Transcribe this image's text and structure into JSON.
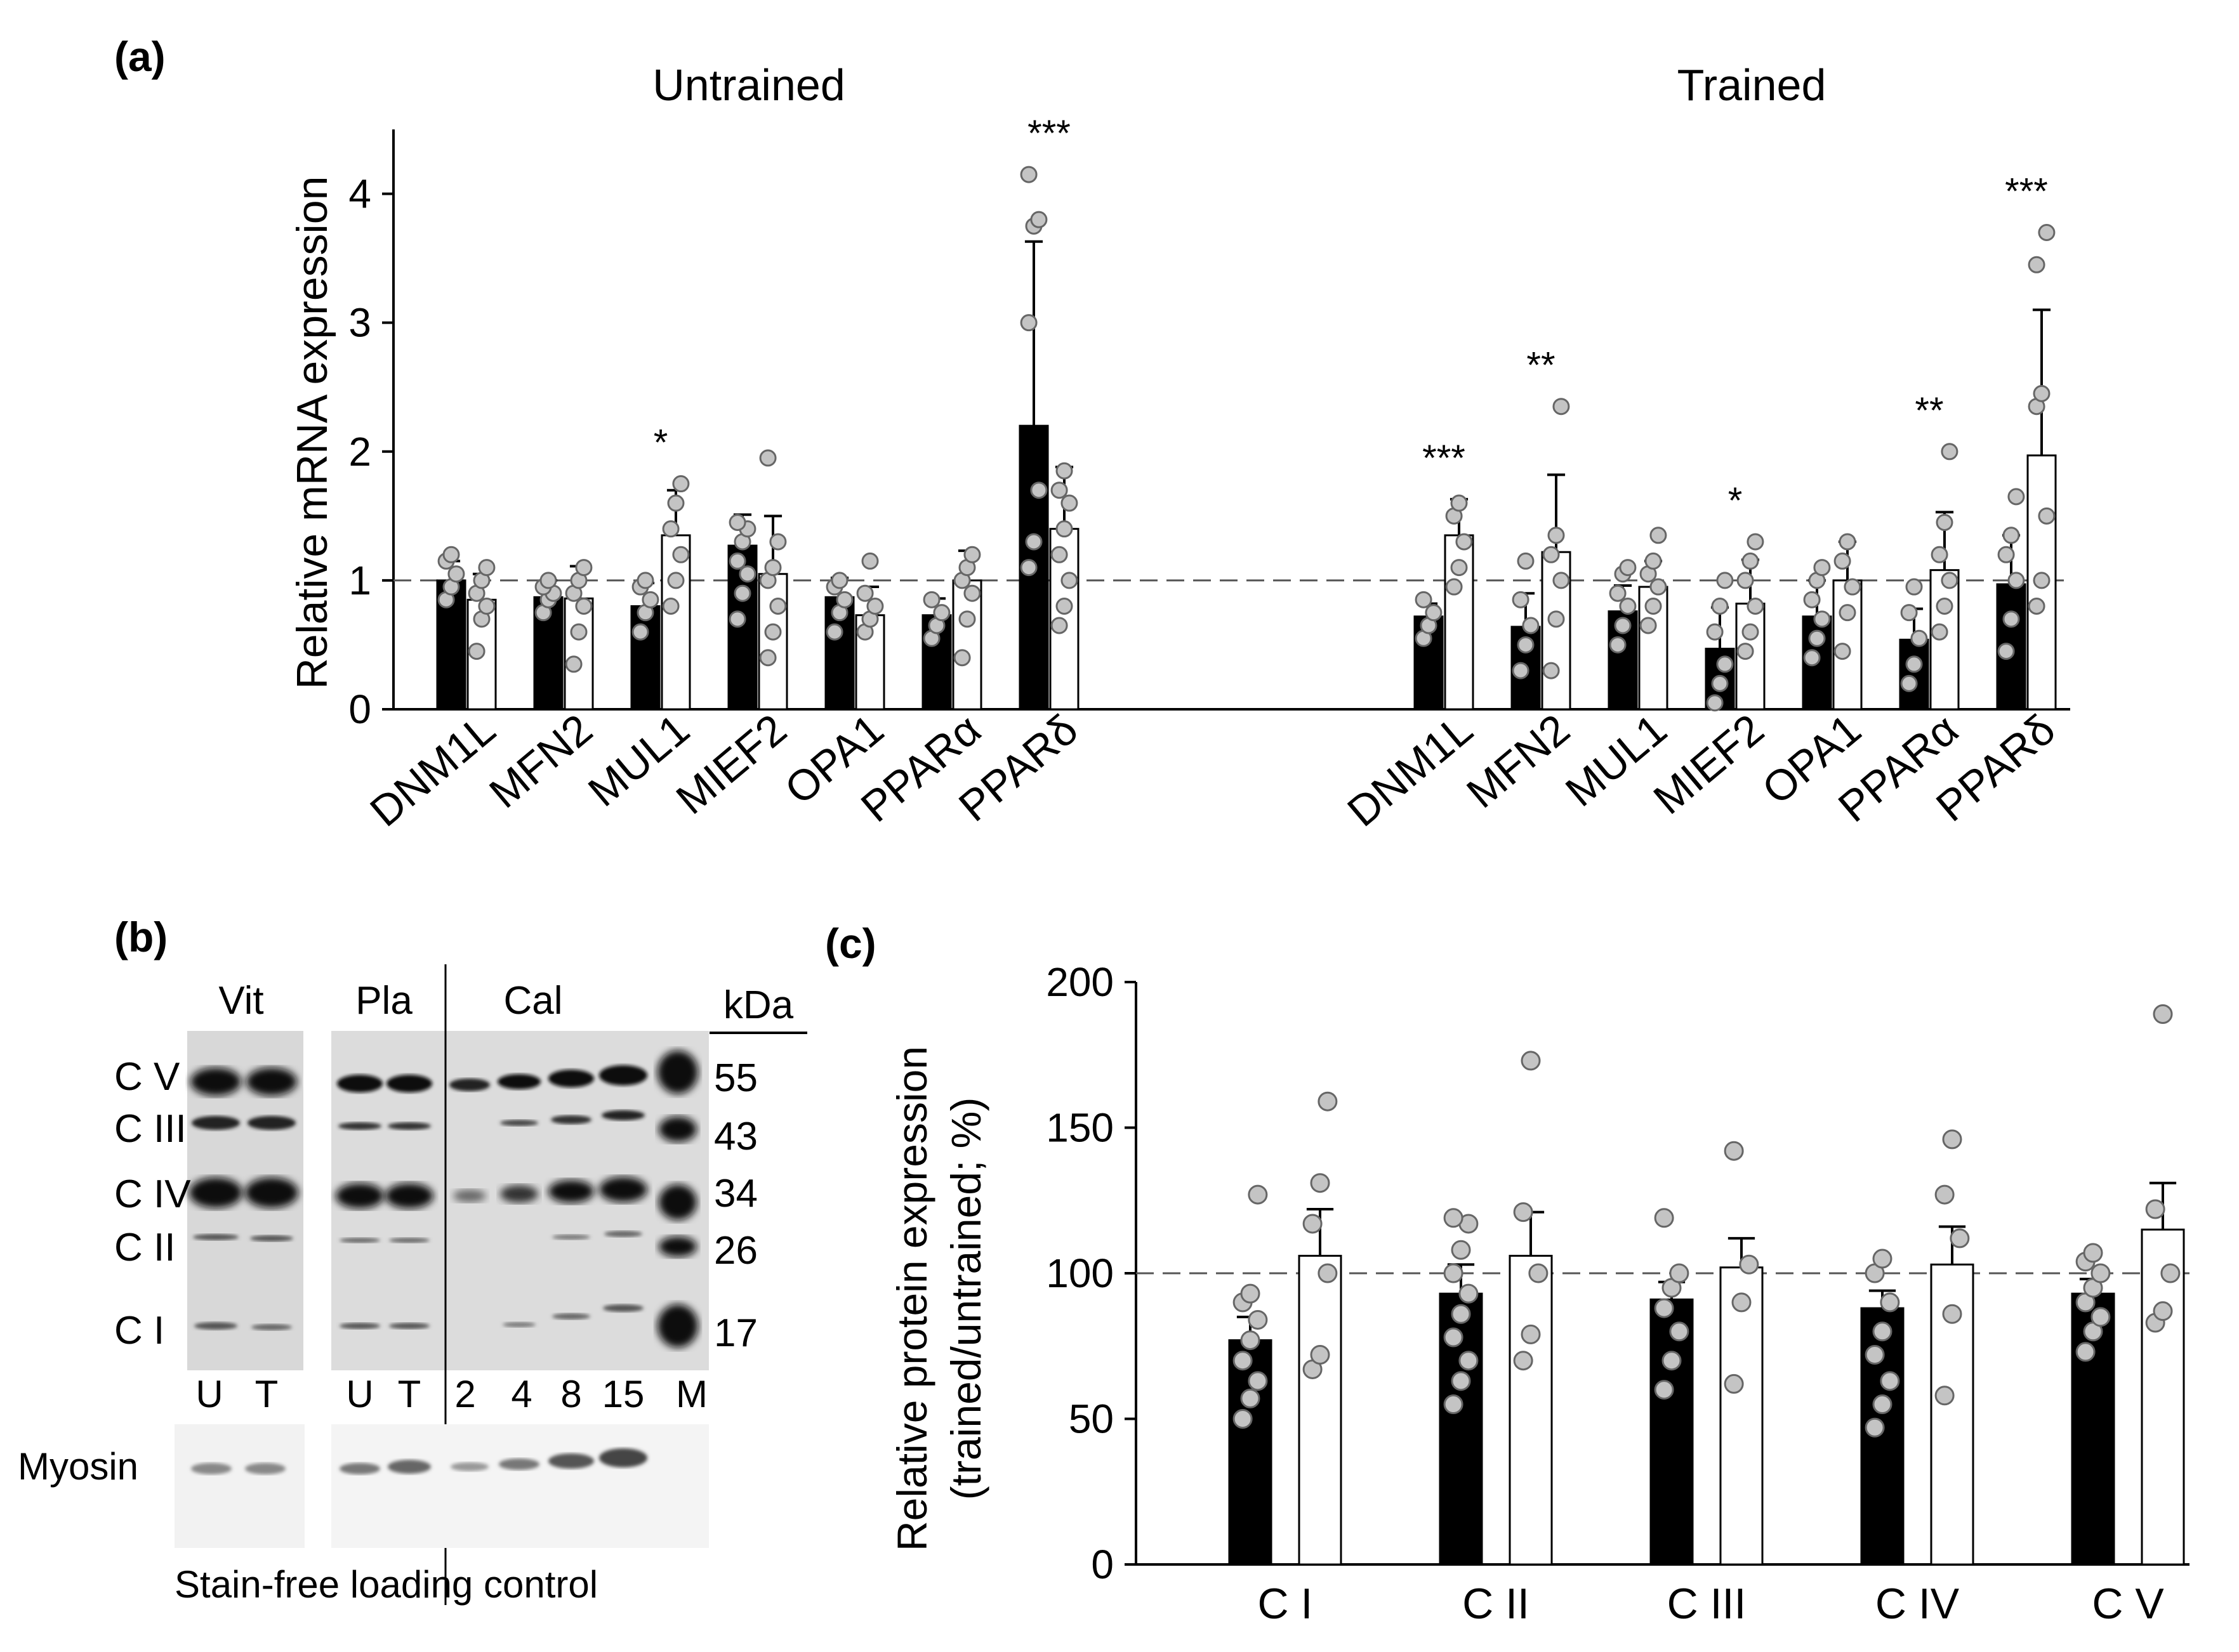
{
  "panel_labels": {
    "a": "(a)",
    "b": "(b)",
    "c": "(c)"
  },
  "chart_data": [
    {
      "id": "a",
      "type": "bar",
      "ylabel": "Relative mRNA expression",
      "ylim": [
        0,
        4.5
      ],
      "yticks": [
        0,
        1,
        2,
        3,
        4
      ],
      "reference_line": 1,
      "groups": [
        {
          "title": "Untrained",
          "categories": [
            "DNM1L",
            "MFN2",
            "MUL1",
            "MIEF2",
            "OPA1",
            "PPARα",
            "PPARδ"
          ],
          "series": [
            {
              "fill": "#000000",
              "values": [
                1.0,
                0.87,
                0.8,
                1.27,
                0.87,
                0.73,
                2.2
              ],
              "errors": [
                0.15,
                0.13,
                0.18,
                0.24,
                0.15,
                0.13,
                1.43
              ],
              "points": [
                [
                  0.85,
                  0.95,
                  1.05,
                  1.15,
                  1.2
                ],
                [
                  0.75,
                  0.85,
                  0.9,
                  0.95,
                  1.0
                ],
                [
                  0.6,
                  0.75,
                  0.85,
                  0.95,
                  1.0
                ],
                [
                  0.7,
                  0.9,
                  1.05,
                  1.15,
                  1.3,
                  1.4,
                  1.45
                ],
                [
                  0.6,
                  0.75,
                  0.85,
                  0.95,
                  1.0
                ],
                [
                  0.55,
                  0.65,
                  0.75,
                  0.85
                ],
                [
                  1.1,
                  1.3,
                  1.7,
                  3.0,
                  3.75,
                  3.8,
                  4.15
                ]
              ]
            },
            {
              "fill": "#ffffff",
              "values": [
                0.85,
                0.86,
                1.35,
                1.05,
                0.73,
                1.0,
                1.4
              ],
              "errors": [
                0.2,
                0.25,
                0.35,
                0.45,
                0.22,
                0.23,
                0.48
              ],
              "points": [
                [
                  0.45,
                  0.7,
                  0.8,
                  0.9,
                  1.0,
                  1.1
                ],
                [
                  0.35,
                  0.6,
                  0.8,
                  0.9,
                  1.0,
                  1.1
                ],
                [
                  0.8,
                  1.0,
                  1.2,
                  1.4,
                  1.6,
                  1.75
                ],
                [
                  0.4,
                  0.6,
                  0.8,
                  1.0,
                  1.1,
                  1.3,
                  1.95
                ],
                [
                  0.6,
                  0.7,
                  0.8,
                  0.9,
                  1.15
                ],
                [
                  0.4,
                  0.7,
                  0.9,
                  1.0,
                  1.1,
                  1.2
                ],
                [
                  0.65,
                  0.8,
                  1.0,
                  1.2,
                  1.4,
                  1.6,
                  1.7,
                  1.85
                ]
              ]
            }
          ],
          "significance": [
            "",
            "",
            "*",
            "",
            "",
            "",
            "***"
          ]
        },
        {
          "title": "Trained",
          "categories": [
            "DNM1L",
            "MFN2",
            "MUL1",
            "MIEF2",
            "OPA1",
            "PPARα",
            "PPARδ"
          ],
          "series": [
            {
              "fill": "#000000",
              "values": [
                0.72,
                0.64,
                0.76,
                0.47,
                0.72,
                0.54,
                0.97
              ],
              "errors": [
                0.1,
                0.26,
                0.2,
                0.32,
                0.28,
                0.24,
                0.38
              ],
              "points": [
                [
                  0.55,
                  0.65,
                  0.75,
                  0.85
                ],
                [
                  0.3,
                  0.5,
                  0.65,
                  0.85,
                  1.15
                ],
                [
                  0.5,
                  0.65,
                  0.8,
                  0.9,
                  1.05,
                  1.1
                ],
                [
                  0.05,
                  0.2,
                  0.35,
                  0.6,
                  0.8,
                  1.0
                ],
                [
                  0.4,
                  0.55,
                  0.7,
                  0.85,
                  1.0,
                  1.1
                ],
                [
                  0.2,
                  0.35,
                  0.55,
                  0.75,
                  0.95
                ],
                [
                  0.45,
                  0.7,
                  1.0,
                  1.2,
                  1.35,
                  1.65
                ]
              ]
            },
            {
              "fill": "#ffffff",
              "values": [
                1.35,
                1.22,
                0.95,
                0.82,
                1.0,
                1.08,
                1.97
              ],
              "errors": [
                0.28,
                0.6,
                0.2,
                0.34,
                0.3,
                0.45,
                1.13
              ],
              "points": [
                [
                  0.95,
                  1.1,
                  1.3,
                  1.5,
                  1.6
                ],
                [
                  0.3,
                  0.7,
                  1.0,
                  1.2,
                  1.35,
                  2.35
                ],
                [
                  0.65,
                  0.8,
                  0.95,
                  1.05,
                  1.15,
                  1.35
                ],
                [
                  0.45,
                  0.6,
                  0.8,
                  1.0,
                  1.15,
                  1.3
                ],
                [
                  0.45,
                  0.75,
                  0.95,
                  1.15,
                  1.3
                ],
                [
                  0.6,
                  0.8,
                  1.0,
                  1.2,
                  1.45,
                  2.0
                ],
                [
                  0.8,
                  1.0,
                  1.5,
                  2.35,
                  2.45,
                  3.7,
                  3.45
                ]
              ]
            }
          ],
          "significance": [
            "***",
            "**",
            "",
            "*",
            "",
            "**",
            "***"
          ]
        }
      ]
    },
    {
      "id": "c",
      "type": "bar",
      "ylabel_lines": [
        "Relative protein expression",
        "(trained/untrained; %)"
      ],
      "ylim": [
        0,
        200
      ],
      "yticks": [
        0,
        50,
        100,
        150,
        200
      ],
      "reference_line": 100,
      "categories": [
        "C I",
        "C II",
        "C III",
        "C IV",
        "C V"
      ],
      "series": [
        {
          "fill": "#000000",
          "values": [
            77,
            93,
            91,
            88,
            93
          ],
          "errors": [
            8,
            10,
            6,
            6,
            5
          ],
          "points": [
            [
              50,
              57,
              63,
              70,
              77,
              84,
              90,
              93,
              127
            ],
            [
              55,
              63,
              70,
              78,
              86,
              93,
              100,
              108,
              117,
              119
            ],
            [
              60,
              70,
              80,
              88,
              95,
              100,
              119
            ],
            [
              47,
              55,
              63,
              72,
              80,
              90,
              100,
              105
            ],
            [
              73,
              80,
              85,
              90,
              95,
              100,
              104,
              107
            ]
          ]
        },
        {
          "fill": "#ffffff",
          "values": [
            106,
            106,
            102,
            103,
            115
          ],
          "errors": [
            16,
            15,
            10,
            13,
            16
          ],
          "points": [
            [
              67,
              72,
              100,
              117,
              131,
              159
            ],
            [
              70,
              79,
              100,
              121,
              173
            ],
            [
              62,
              90,
              103,
              142
            ],
            [
              58,
              86,
              112,
              127,
              146
            ],
            [
              83,
              87,
              100,
              122,
              189
            ]
          ]
        }
      ]
    }
  ],
  "blot": {
    "groups": [
      {
        "label": "Vit",
        "lanes": [
          "U",
          "T"
        ]
      },
      {
        "label": "Pla",
        "lanes": [
          "U",
          "T"
        ]
      },
      {
        "label": "Cal",
        "lanes": [
          "2",
          "4",
          "8",
          "15",
          "M"
        ]
      }
    ],
    "complexes": [
      "C V",
      "C III",
      "C IV",
      "C II",
      "C I"
    ],
    "kda_header": "kDa",
    "kda_markers": [
      "55",
      "43",
      "34",
      "26",
      "17"
    ],
    "loading_label": "Myosin",
    "loading_caption": "Stain-free loading control"
  }
}
